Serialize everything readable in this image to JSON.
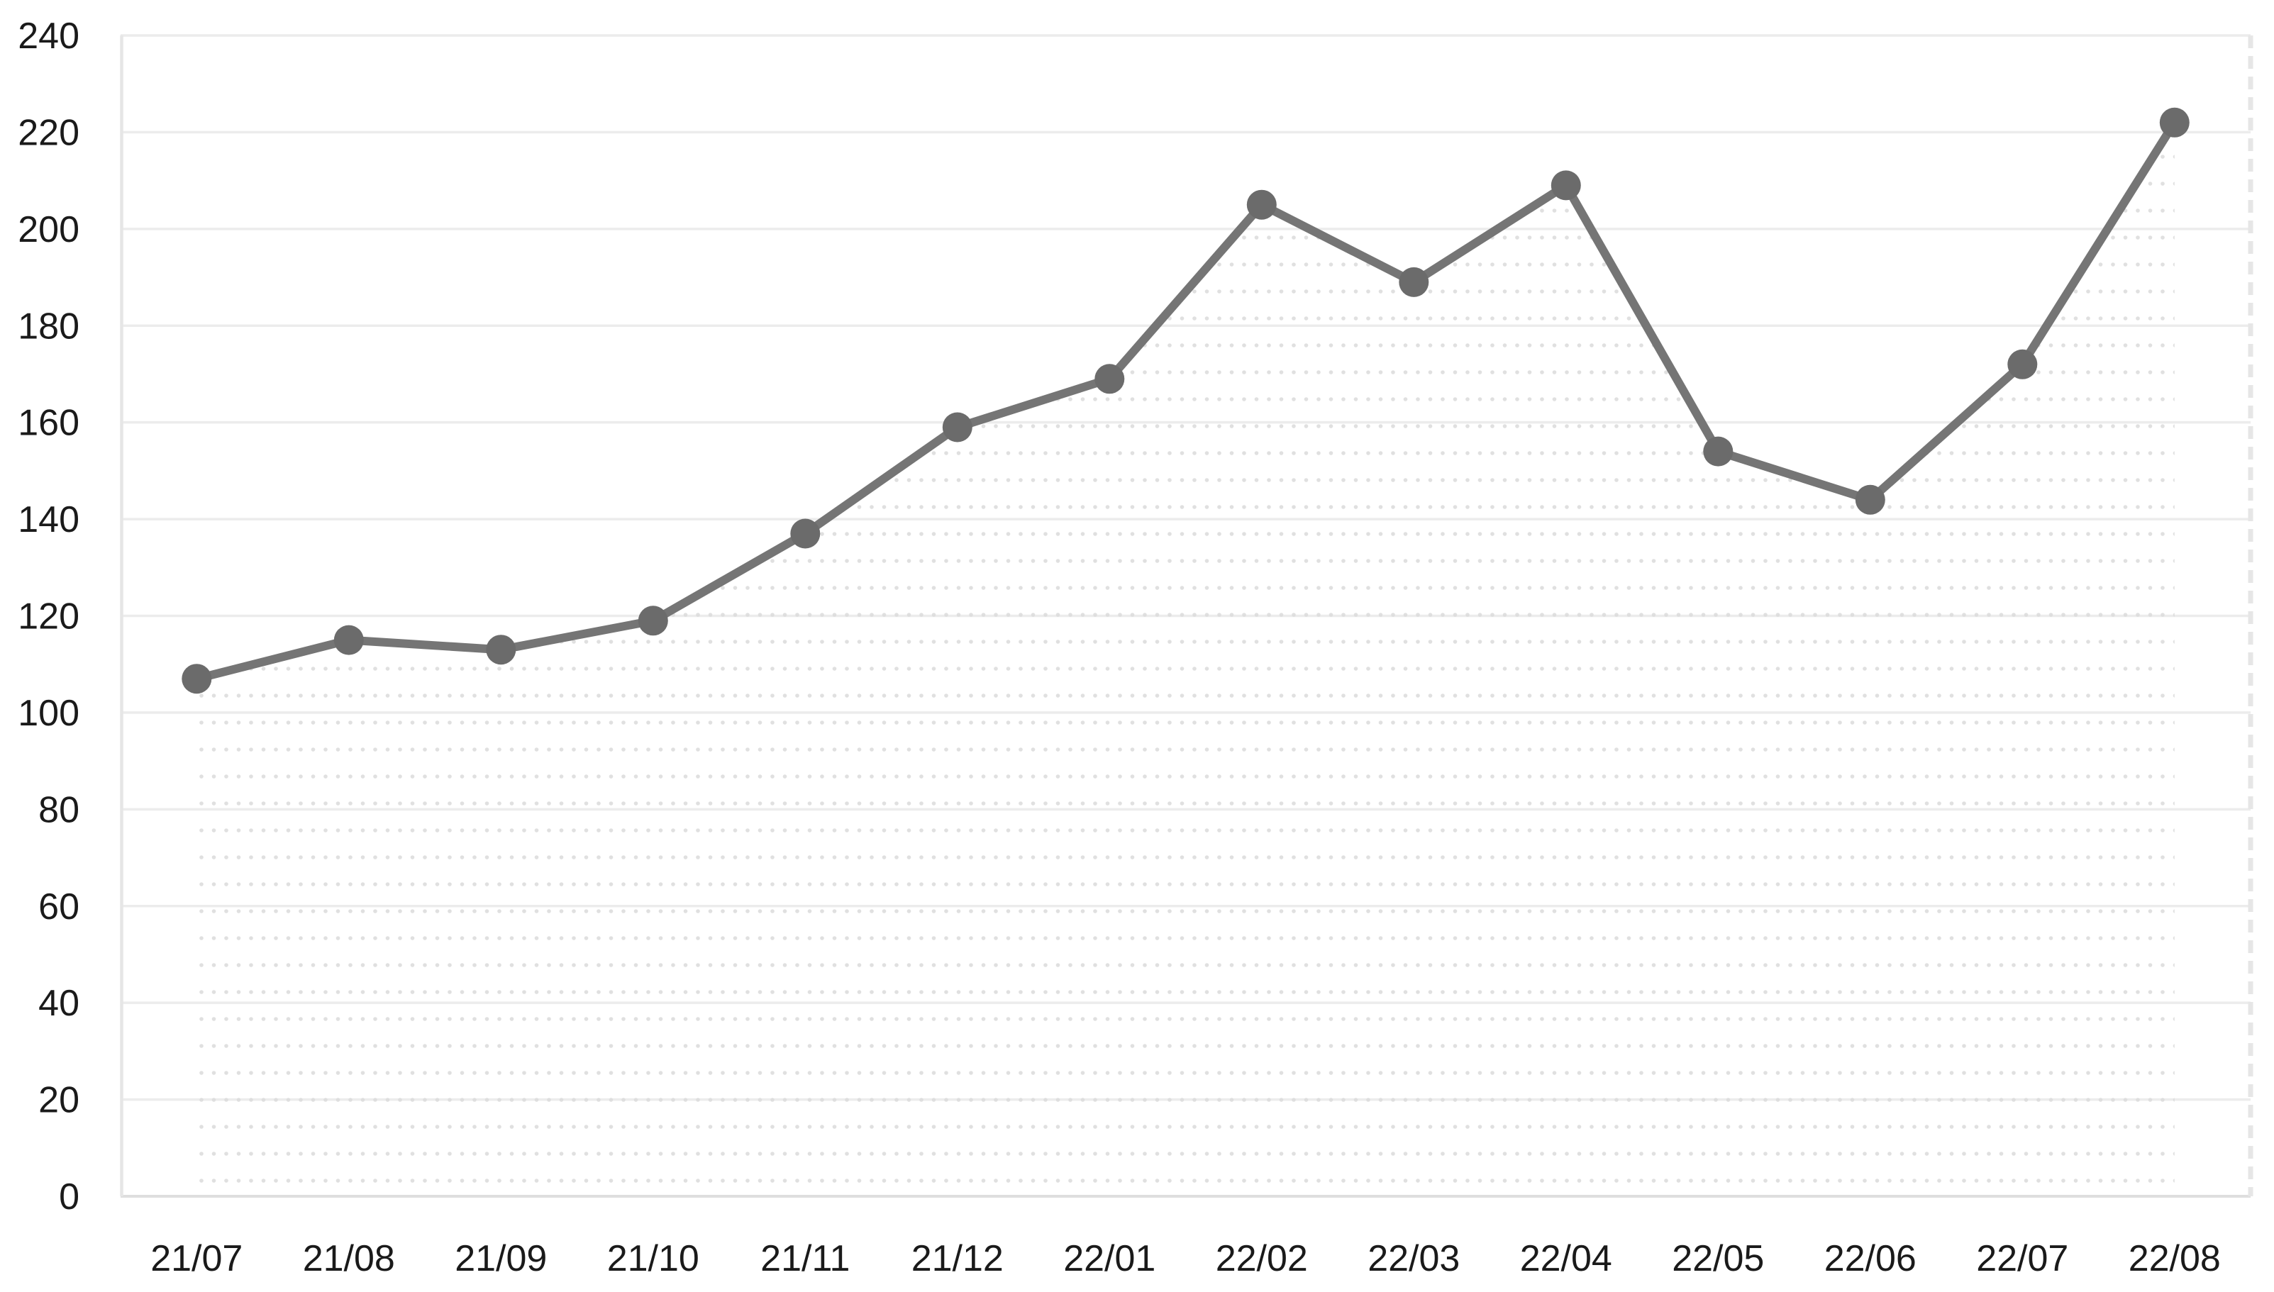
{
  "chart_data": {
    "type": "line",
    "title": "",
    "xlabel": "",
    "ylabel": "",
    "categories": [
      "21/07",
      "21/08",
      "21/09",
      "21/10",
      "21/11",
      "21/12",
      "22/01",
      "22/02",
      "22/03",
      "22/04",
      "22/05",
      "22/06",
      "22/07",
      "22/08"
    ],
    "values": [
      107,
      115,
      113,
      119,
      137,
      159,
      169,
      205,
      189,
      209,
      154,
      144,
      172,
      222
    ],
    "ylim": [
      0,
      240
    ],
    "ytick_step": 20,
    "y_tick_labels": [
      "0",
      "20",
      "40",
      "60",
      "80",
      "100",
      "120",
      "140",
      "160",
      "180",
      "200",
      "220",
      "240"
    ],
    "grid": "horizontal",
    "legend": "none",
    "area_fill": "dotted-pattern-under-line",
    "plot_border": {
      "left": "solid",
      "right": "dashed",
      "bottom": "solid",
      "top": "gridline"
    },
    "colors": {
      "line": "#757575",
      "marker": "#6b6b6b",
      "gridline": "#ececec",
      "plot_border": "#e6e6e6",
      "bottom_axis": "#dedede",
      "area_dots": "#dcdcdc",
      "axis_text": "#1a1a1a",
      "background": "#ffffff"
    }
  }
}
